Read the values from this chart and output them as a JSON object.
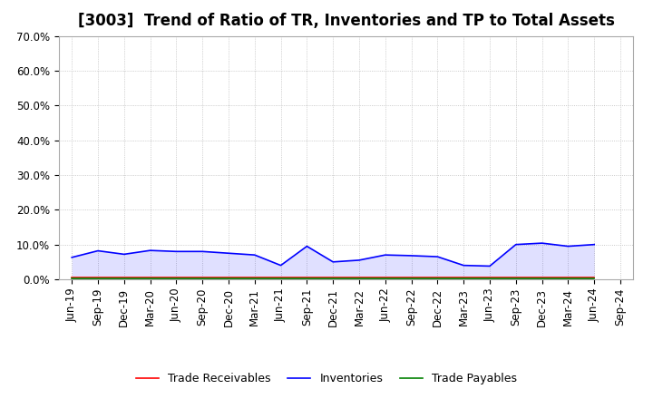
{
  "title": "[3003]  Trend of Ratio of TR, Inventories and TP to Total Assets",
  "x_labels": [
    "Jun-19",
    "Sep-19",
    "Dec-19",
    "Mar-20",
    "Jun-20",
    "Sep-20",
    "Dec-20",
    "Mar-21",
    "Jun-21",
    "Sep-21",
    "Dec-21",
    "Mar-22",
    "Jun-22",
    "Sep-22",
    "Dec-22",
    "Mar-23",
    "Jun-23",
    "Sep-23",
    "Dec-23",
    "Mar-24",
    "Jun-24",
    "Sep-24"
  ],
  "trade_receivables": [
    0.006,
    0.006,
    0.006,
    0.006,
    0.006,
    0.006,
    0.006,
    0.006,
    0.006,
    0.006,
    0.006,
    0.006,
    0.006,
    0.006,
    0.006,
    0.006,
    0.006,
    0.006,
    0.006,
    0.006,
    0.006,
    null
  ],
  "inventories": [
    0.063,
    0.082,
    0.072,
    0.083,
    0.08,
    0.08,
    0.075,
    0.07,
    0.04,
    0.095,
    0.05,
    0.055,
    0.07,
    0.068,
    0.065,
    0.04,
    0.038,
    0.1,
    0.104,
    0.095,
    0.1,
    null
  ],
  "trade_payables": [
    0.003,
    0.003,
    0.003,
    0.003,
    0.003,
    0.003,
    0.003,
    0.003,
    0.003,
    0.003,
    0.003,
    0.003,
    0.003,
    0.003,
    0.003,
    0.003,
    0.003,
    0.003,
    0.003,
    0.003,
    0.003,
    null
  ],
  "tr_color": "#FF0000",
  "inv_color": "#0000FF",
  "tp_color": "#008000",
  "ylim": [
    0.0,
    0.7
  ],
  "yticks": [
    0.0,
    0.1,
    0.2,
    0.3,
    0.4,
    0.5,
    0.6,
    0.7
  ],
  "ytick_labels": [
    "0.0%",
    "10.0%",
    "20.0%",
    "30.0%",
    "40.0%",
    "50.0%",
    "60.0%",
    "70.0%"
  ],
  "legend_labels": [
    "Trade Receivables",
    "Inventories",
    "Trade Payables"
  ],
  "background_color": "#FFFFFF",
  "grid_color": "#BBBBBB",
  "title_fontsize": 12,
  "axis_fontsize": 8.5,
  "legend_fontsize": 9
}
